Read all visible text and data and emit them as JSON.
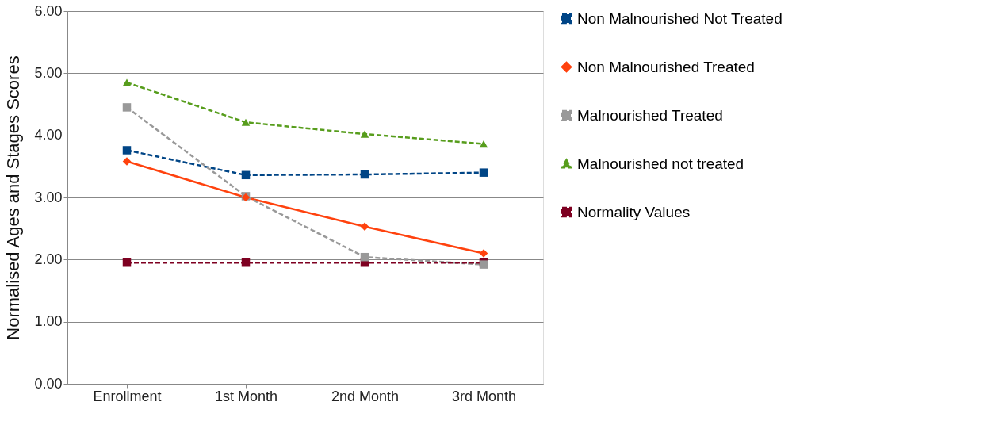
{
  "chart_data": {
    "type": "line",
    "ylabel": "Normalised Ages and Stages Scores",
    "categories": [
      "Enrollment",
      "1st Month",
      "2nd Month",
      "3rd Month"
    ],
    "series": [
      {
        "name": "Non Malnourished Not Treated",
        "color": "#004586",
        "marker": "square",
        "line_style": "dashed",
        "values": [
          3.76,
          3.36,
          3.37,
          3.4
        ]
      },
      {
        "name": "Non Malnourished Treated",
        "color": "#ff420e",
        "marker": "diamond",
        "line_style": "solid",
        "values": [
          3.58,
          3.0,
          2.53,
          2.1
        ]
      },
      {
        "name": "Malnourished Treated",
        "color": "#999999",
        "marker": "square",
        "line_style": "dashed",
        "values": [
          4.45,
          3.02,
          2.04,
          1.92
        ]
      },
      {
        "name": "Malnourished not treated",
        "color": "#579d1c",
        "marker": "triangle",
        "line_style": "dashed",
        "values": [
          4.85,
          4.21,
          4.02,
          3.86
        ]
      },
      {
        "name": "Normality Values",
        "color": "#7e0021",
        "marker": "square",
        "line_style": "dashed",
        "values": [
          1.95,
          1.95,
          1.95,
          1.95
        ]
      }
    ],
    "ylim": [
      0,
      6
    ],
    "yticks": [
      {
        "value": 0,
        "label": "0.00"
      },
      {
        "value": 1,
        "label": "1.00"
      },
      {
        "value": 2,
        "label": "2.00"
      },
      {
        "value": 3,
        "label": "3.00"
      },
      {
        "value": 4,
        "label": "4.00"
      },
      {
        "value": 5,
        "label": "5.00"
      },
      {
        "value": 6,
        "label": "6.00"
      }
    ],
    "grid": "y",
    "legend": "right"
  }
}
